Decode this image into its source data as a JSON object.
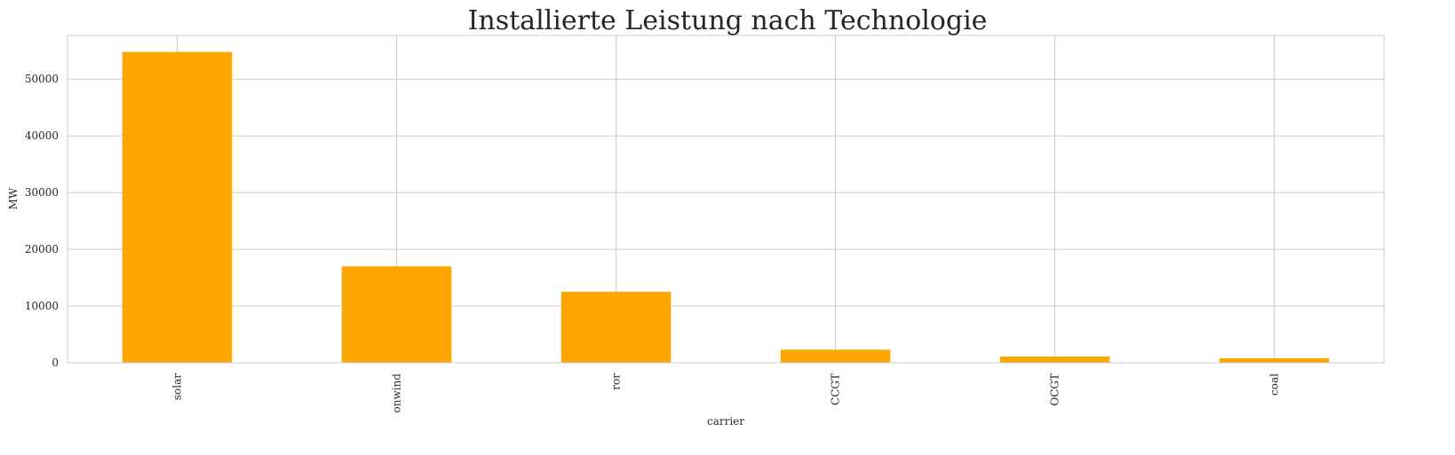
{
  "chart_data": {
    "type": "bar",
    "title": "Installierte Leistung nach Technologie",
    "xlabel": "carrier",
    "ylabel": "MW",
    "categories": [
      "solar",
      "onwind",
      "ror",
      "CCGT",
      "OCGT",
      "coal"
    ],
    "values": [
      54800,
      17000,
      12500,
      2300,
      1100,
      800
    ],
    "ylim": [
      0,
      57700
    ],
    "yticks": [
      0,
      10000,
      20000,
      30000,
      40000,
      50000
    ],
    "ytick_labels": [
      "0",
      "10000",
      "20000",
      "30000",
      "40000",
      "50000"
    ],
    "grid": true,
    "bar_color": "#ffa500",
    "grid_color": "#cccccc",
    "frame_color": "#cccccc"
  }
}
